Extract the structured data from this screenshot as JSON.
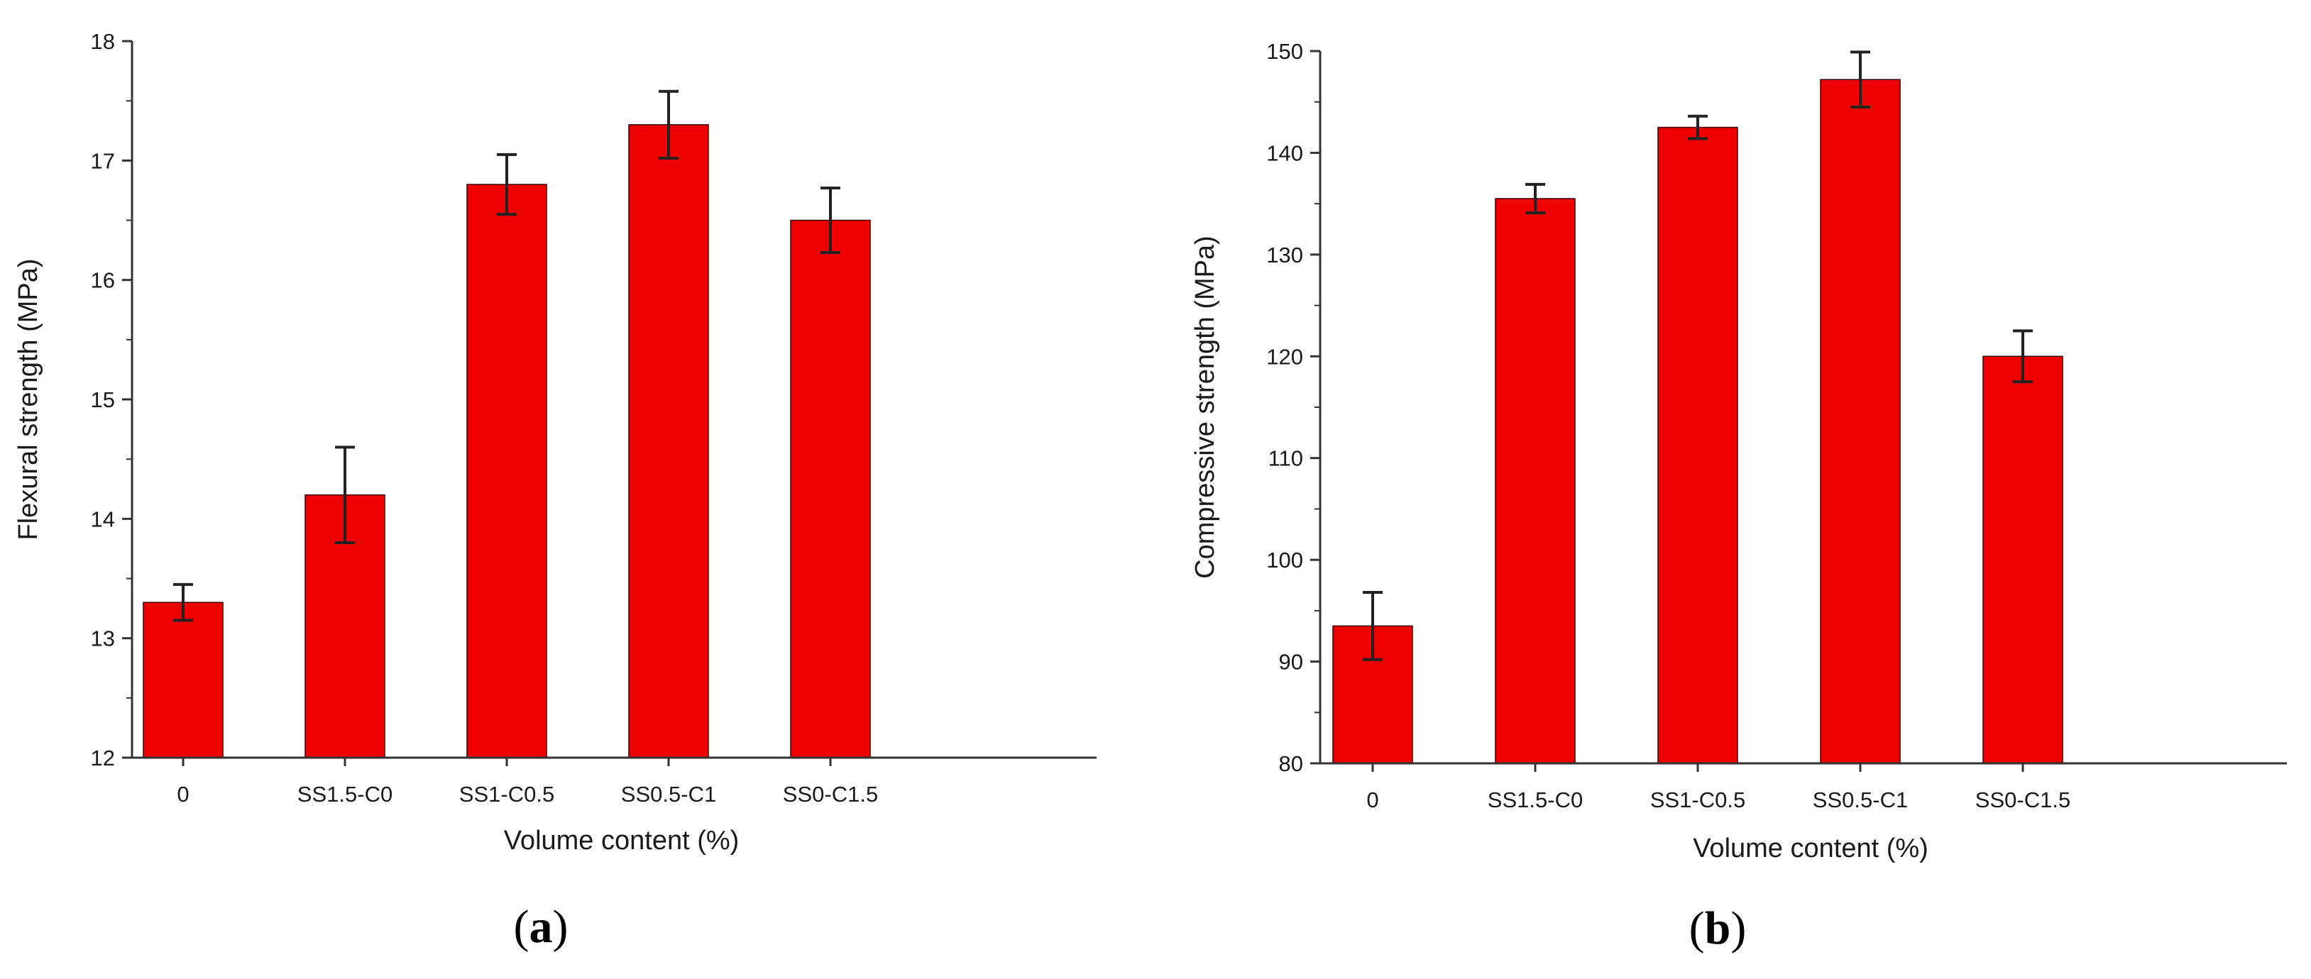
{
  "colors": {
    "bar": "#ef0000",
    "bar_edge": "#3a0000",
    "axis": "#333333",
    "text": "#1a1a1a"
  },
  "chart_data": [
    {
      "type": "bar",
      "panel_label": "a",
      "title": "",
      "xlabel": "Volume content (%)",
      "ylabel": "Flexural strength (MPa)",
      "categories": [
        "0",
        "SS1.5-C0",
        "SS1-C0.5",
        "SS0.5-C1",
        "SS0-C1.5"
      ],
      "values": [
        13.3,
        14.2,
        16.8,
        17.3,
        16.5
      ],
      "errors": [
        0.15,
        0.4,
        0.25,
        0.28,
        0.27
      ],
      "ylim": [
        12,
        18
      ],
      "yticks": [
        12,
        13,
        14,
        15,
        16,
        17,
        18
      ],
      "grid": false
    },
    {
      "type": "bar",
      "panel_label": "b",
      "title": "",
      "xlabel": "Volume content (%)",
      "ylabel": "Compressive strength (MPa)",
      "categories": [
        "0",
        "SS1.5-C0",
        "SS1-C0.5",
        "SS0.5-C1",
        "SS0-C1.5"
      ],
      "values": [
        93.5,
        135.5,
        142.5,
        147.2,
        120.0
      ],
      "errors": [
        3.3,
        1.4,
        1.1,
        2.7,
        2.5
      ],
      "ylim": [
        80,
        150
      ],
      "yticks": [
        80,
        90,
        100,
        110,
        120,
        130,
        140,
        150
      ],
      "grid": false
    }
  ]
}
